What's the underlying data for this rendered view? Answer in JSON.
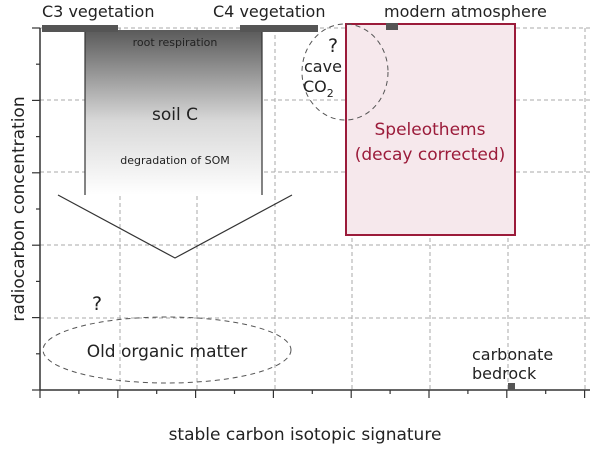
{
  "top_labels": {
    "c3": "C3 vegetation",
    "c4": "C4 vegetation",
    "atmosphere": "modern atmosphere"
  },
  "soil": {
    "root": "root respiration",
    "label": "soil C",
    "degradation": "degradation of SOM"
  },
  "cave": {
    "question": "?",
    "line1": "cave",
    "co": "CO",
    "sub": "2"
  },
  "speleothems": {
    "line1": "Speleothems",
    "line2": "(decay corrected)"
  },
  "old_matter": {
    "question": "?",
    "label": "Old organic matter"
  },
  "bedrock": {
    "line1": "carbonate",
    "line2": "bedrock"
  },
  "axes": {
    "y": "radiocarbon concentration",
    "x": "stable carbon isotopic signature"
  }
}
